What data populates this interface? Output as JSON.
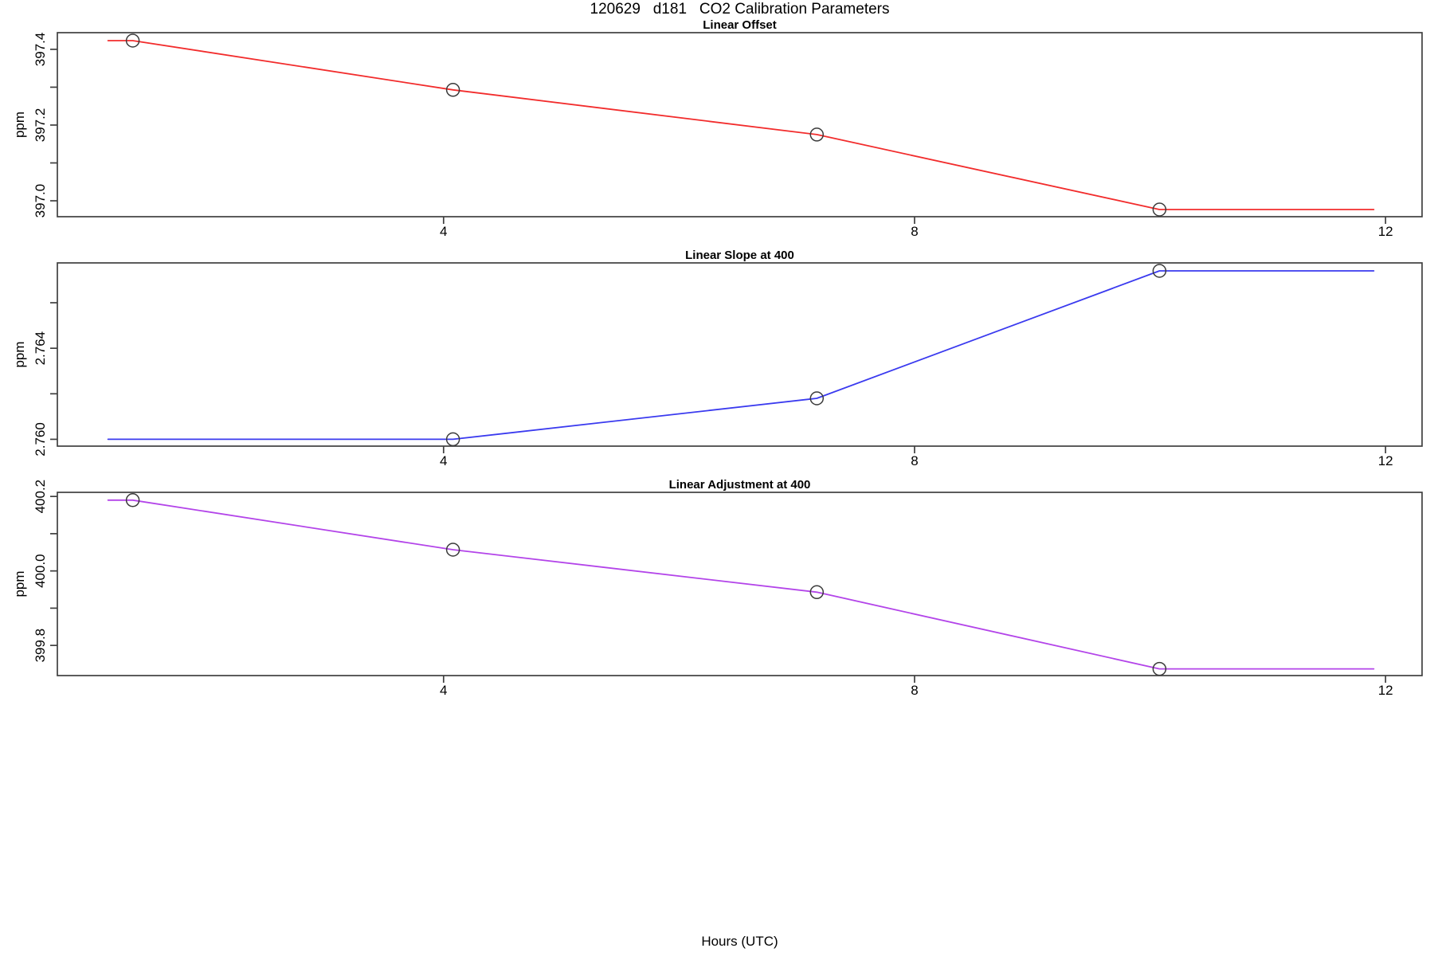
{
  "figure_title": "120629   d181   CO2 Calibration Parameters",
  "chart_data": {
    "type": "line",
    "title": "120629   d181   CO2 Calibration Parameters",
    "xlabel": "Hours (UTC)",
    "x_range": [
      0.72,
      12.31
    ],
    "xticks": [
      {
        "v": 4,
        "label": "4"
      },
      {
        "v": 8,
        "label": "8"
      },
      {
        "v": 12,
        "label": "12"
      }
    ],
    "grid": false,
    "legend": null,
    "marker_style": {
      "shape": "open-circle",
      "color": "#3a3a3a"
    },
    "panels": [
      {
        "title": "Linear Offset",
        "ylabel": "ppm",
        "line_color": "#f22c2c",
        "y_range": [
          396.958,
          397.444
        ],
        "yticks": [
          {
            "v": 397.0,
            "label": "397.0"
          },
          {
            "v": 397.1,
            "label": ""
          },
          {
            "v": 397.2,
            "label": "397.2"
          },
          {
            "v": 397.3,
            "label": ""
          },
          {
            "v": 397.4,
            "label": "397.4"
          }
        ],
        "line": [
          [
            1.15,
            397.423
          ],
          [
            1.36,
            397.423
          ],
          [
            4.08,
            397.293
          ],
          [
            7.17,
            397.175
          ],
          [
            10.08,
            396.977
          ],
          [
            11.9,
            396.977
          ]
        ],
        "points": [
          [
            1.36,
            397.423
          ],
          [
            4.08,
            397.293
          ],
          [
            7.17,
            397.175
          ],
          [
            10.08,
            396.977
          ]
        ]
      },
      {
        "title": "Linear Slope at 400",
        "ylabel": "ppm",
        "line_color": "#3a3aef",
        "y_range": [
          2.7597,
          2.76775
        ],
        "yticks": [
          {
            "v": 2.76,
            "label": "2.760"
          },
          {
            "v": 2.762,
            "label": ""
          },
          {
            "v": 2.764,
            "label": "2.764"
          },
          {
            "v": 2.766,
            "label": ""
          }
        ],
        "line": [
          [
            1.15,
            2.76
          ],
          [
            4.08,
            2.76
          ],
          [
            7.17,
            2.7618
          ],
          [
            10.08,
            2.7674
          ],
          [
            11.9,
            2.7674
          ]
        ],
        "points": [
          [
            4.08,
            2.76
          ],
          [
            7.17,
            2.7618
          ],
          [
            10.08,
            2.7674
          ]
        ]
      },
      {
        "title": "Linear Adjustment at 400",
        "ylabel": "ppm",
        "line_color": "#b344e9",
        "y_range": [
          399.719,
          400.211
        ],
        "yticks": [
          {
            "v": 399.8,
            "label": "399.8"
          },
          {
            "v": 399.9,
            "label": ""
          },
          {
            "v": 400.0,
            "label": "400.0"
          },
          {
            "v": 400.1,
            "label": ""
          },
          {
            "v": 400.2,
            "label": "400.2"
          }
        ],
        "line": [
          [
            1.15,
            400.19
          ],
          [
            1.36,
            400.19
          ],
          [
            4.08,
            400.057
          ],
          [
            7.17,
            399.943
          ],
          [
            10.08,
            399.737
          ],
          [
            11.9,
            399.737
          ]
        ],
        "points": [
          [
            1.36,
            400.19
          ],
          [
            4.08,
            400.057
          ],
          [
            7.17,
            399.943
          ],
          [
            10.08,
            399.737
          ]
        ]
      }
    ]
  }
}
